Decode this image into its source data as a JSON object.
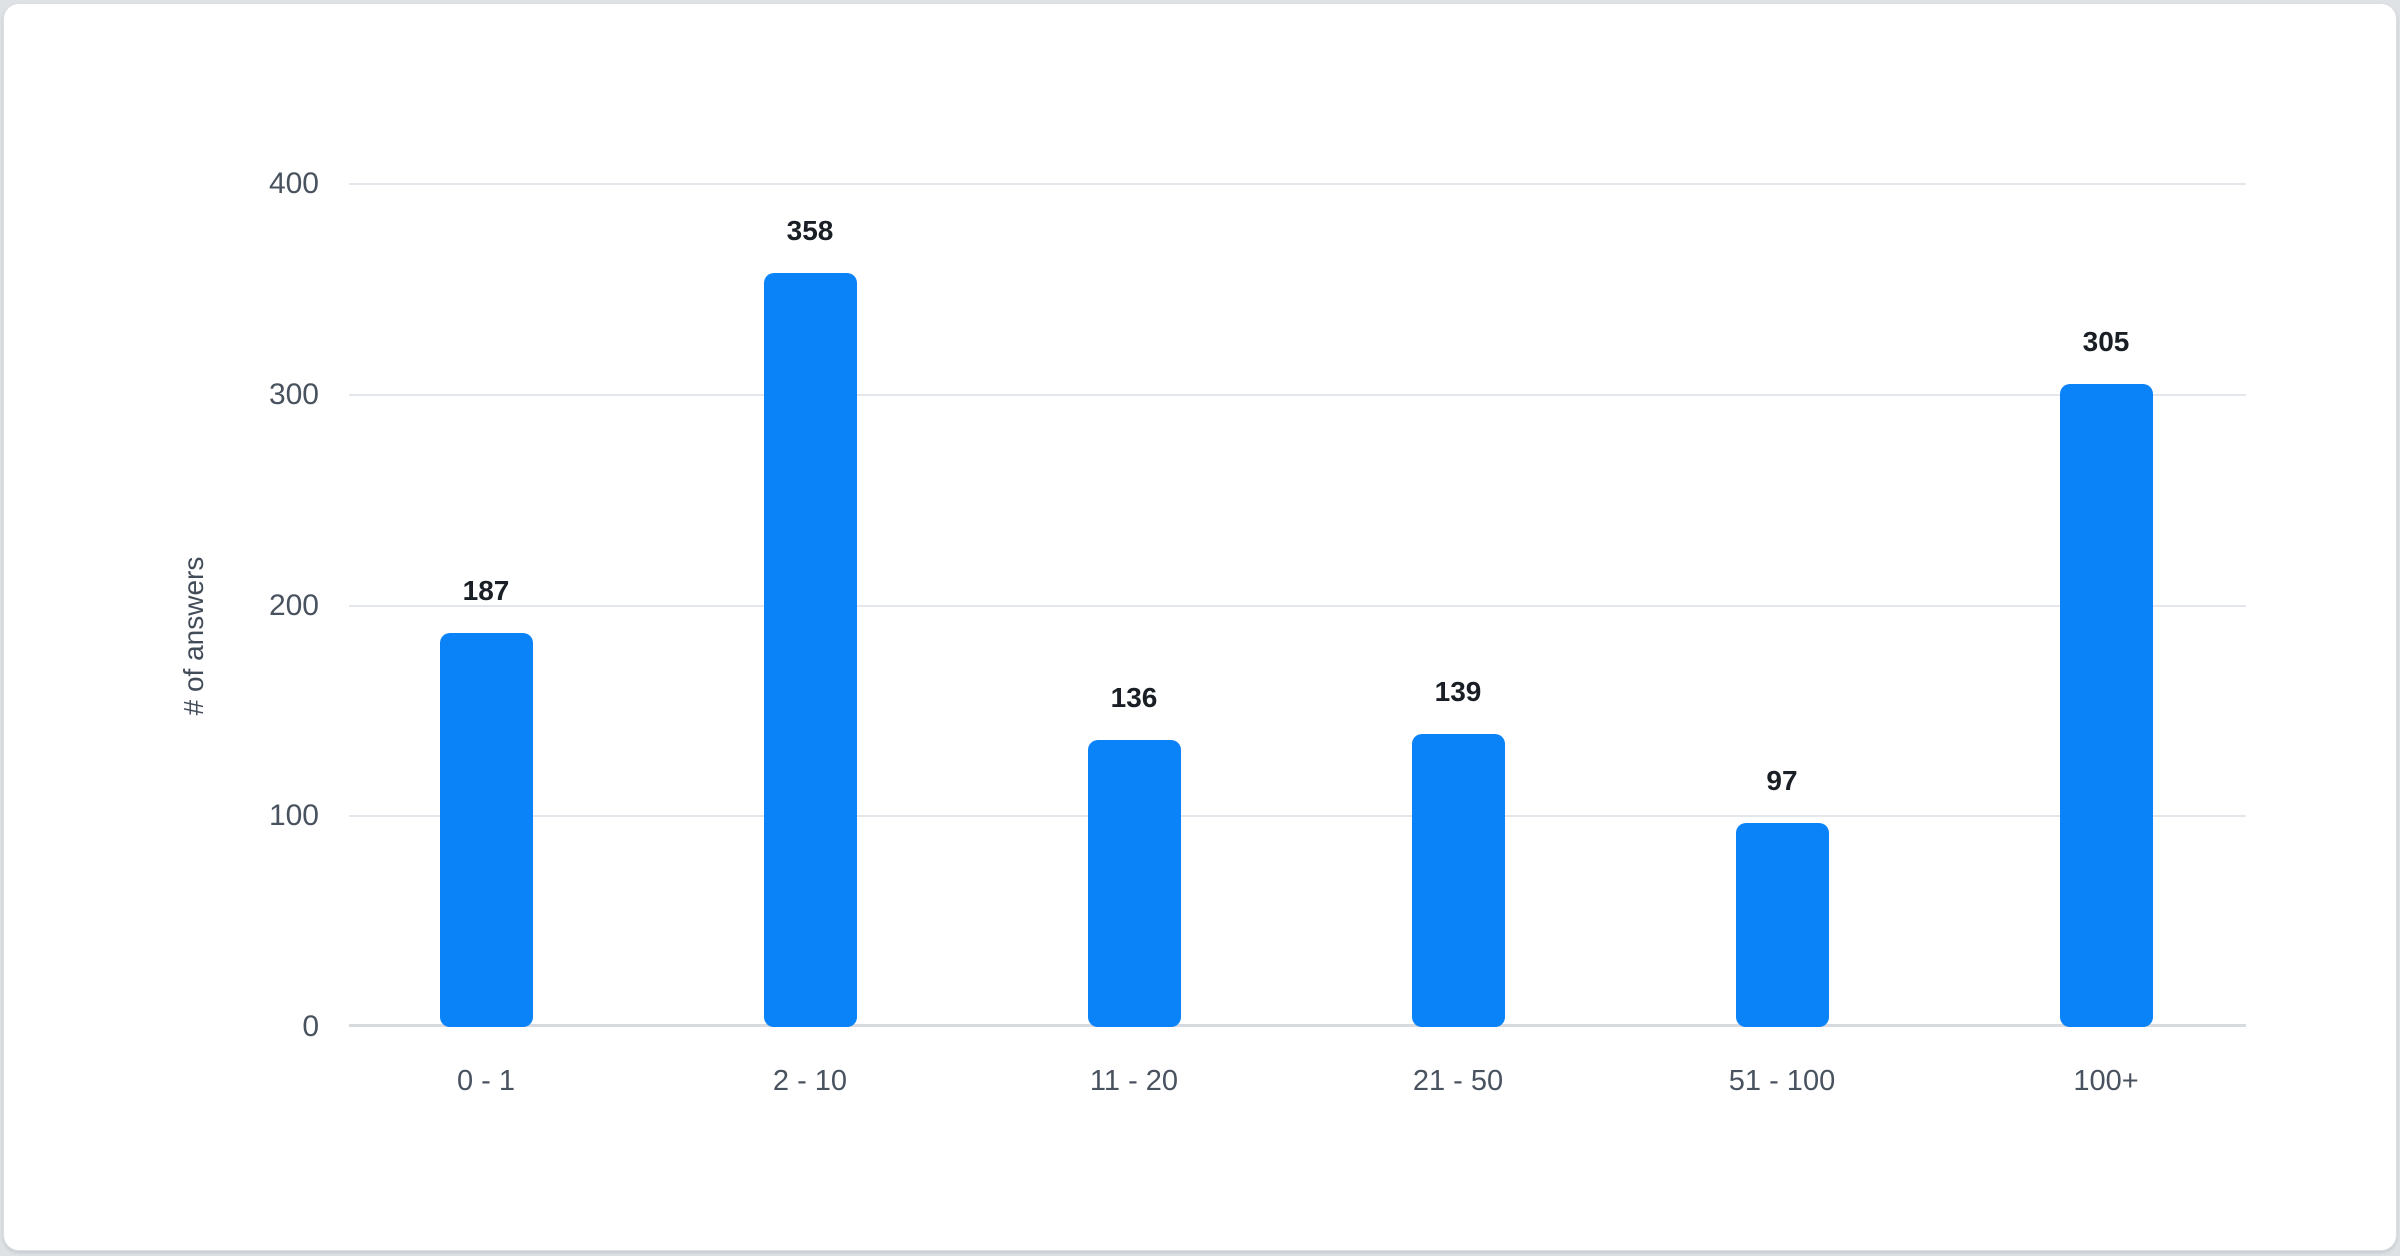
{
  "page": {
    "background_color": "#dfe2e5",
    "card_background_color": "#ffffff"
  },
  "chart_data": {
    "type": "bar",
    "title": "",
    "xlabel": "",
    "ylabel": "# of answers",
    "categories": [
      "0 - 1",
      "2 - 10",
      "11 - 20",
      "21 - 50",
      "51 - 100",
      "100+"
    ],
    "values": [
      187,
      358,
      136,
      139,
      97,
      305
    ],
    "ylim": [
      0,
      400
    ],
    "yticks": [
      0,
      100,
      200,
      300,
      400
    ],
    "grid": true,
    "legend": "none",
    "bar_color": "#0a82f8",
    "value_label_color": "#1a1f26",
    "axis_tick_color": "#49525f",
    "gridline_color": "#e3e6ea",
    "baseline_color": "#d7dadf"
  }
}
